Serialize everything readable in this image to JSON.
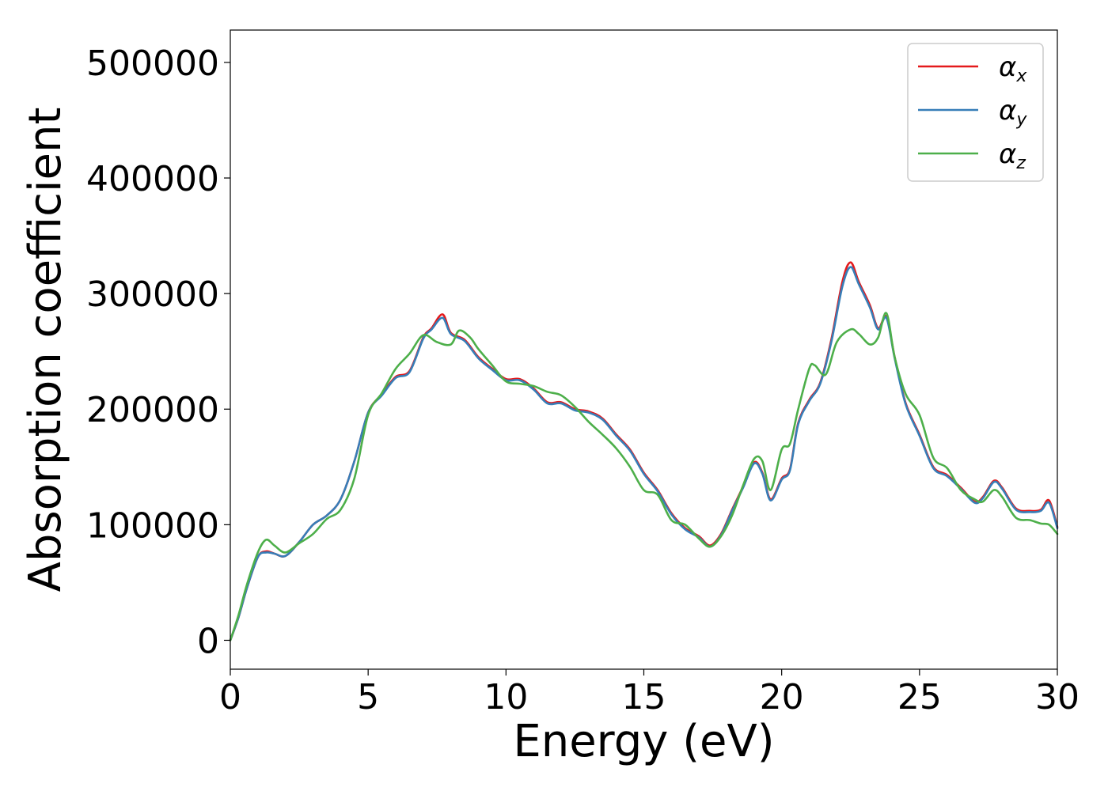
{
  "chart_data": {
    "type": "line",
    "title": "",
    "xlabel": "Energy (eV)",
    "ylabel": "Absorption coefficient",
    "xlim": [
      0,
      30
    ],
    "ylim": [
      -25000,
      528000
    ],
    "xticks": [
      0,
      5,
      10,
      15,
      20,
      25,
      30
    ],
    "yticks": [
      0,
      100000,
      200000,
      300000,
      400000,
      500000
    ],
    "grid": false,
    "legend_position": "upper right",
    "series": [
      {
        "name": "αx",
        "base": "α",
        "sub": "x",
        "color": "#e41a1c",
        "x": [
          0,
          0.3,
          0.6,
          1.0,
          1.3,
          1.6,
          2.0,
          2.5,
          3.0,
          3.5,
          4.0,
          4.5,
          5.0,
          5.5,
          6.0,
          6.5,
          7.0,
          7.3,
          7.7,
          8.0,
          8.5,
          9.0,
          9.5,
          10.0,
          10.5,
          11.0,
          11.5,
          12.0,
          12.5,
          13.0,
          13.5,
          14.0,
          14.5,
          15.0,
          15.5,
          16.0,
          16.5,
          17.0,
          17.4,
          17.8,
          18.2,
          18.6,
          19.0,
          19.3,
          19.6,
          20.0,
          20.3,
          20.6,
          21.0,
          21.4,
          21.8,
          22.2,
          22.5,
          22.8,
          23.2,
          23.5,
          23.8,
          24.1,
          24.5,
          25.0,
          25.5,
          26.0,
          26.5,
          27.0,
          27.3,
          27.7,
          28.0,
          28.5,
          29.0,
          29.4,
          29.7,
          30.0
        ],
        "values": [
          0,
          20000,
          45000,
          72000,
          77000,
          75000,
          73000,
          85000,
          100000,
          108000,
          122000,
          155000,
          197000,
          213000,
          228000,
          233000,
          262000,
          270000,
          282000,
          266000,
          260000,
          245000,
          235000,
          226000,
          226000,
          218000,
          206000,
          206000,
          200000,
          198000,
          192000,
          178000,
          165000,
          145000,
          130000,
          110000,
          97000,
          90000,
          82000,
          92000,
          113000,
          133000,
          154000,
          145000,
          122000,
          140000,
          148000,
          188000,
          208000,
          223000,
          260000,
          310000,
          327000,
          310000,
          290000,
          270000,
          280000,
          245000,
          205000,
          178000,
          150000,
          143000,
          132000,
          120000,
          124000,
          138000,
          132000,
          114000,
          112000,
          113000,
          121000,
          98000
        ]
      },
      {
        "name": "αy",
        "base": "α",
        "sub": "y",
        "color": "#377eb8",
        "x": [
          0,
          0.3,
          0.6,
          1.0,
          1.3,
          1.6,
          2.0,
          2.5,
          3.0,
          3.5,
          4.0,
          4.5,
          5.0,
          5.5,
          6.0,
          6.5,
          7.0,
          7.3,
          7.7,
          8.0,
          8.5,
          9.0,
          9.5,
          10.0,
          10.5,
          11.0,
          11.5,
          12.0,
          12.5,
          13.0,
          13.5,
          14.0,
          14.5,
          15.0,
          15.5,
          16.0,
          16.5,
          17.0,
          17.4,
          17.8,
          18.2,
          18.6,
          19.0,
          19.3,
          19.6,
          20.0,
          20.3,
          20.6,
          21.0,
          21.4,
          21.8,
          22.2,
          22.5,
          22.8,
          23.2,
          23.5,
          23.8,
          24.1,
          24.5,
          25.0,
          25.5,
          26.0,
          26.5,
          27.0,
          27.3,
          27.7,
          28.0,
          28.5,
          29.0,
          29.4,
          29.7,
          30.0
        ],
        "values": [
          0,
          20000,
          45000,
          72000,
          76000,
          75000,
          73000,
          85000,
          100000,
          108000,
          122000,
          155000,
          197000,
          212000,
          227000,
          232000,
          261000,
          269000,
          279000,
          265000,
          259000,
          244000,
          234000,
          225000,
          225000,
          217000,
          205000,
          205000,
          199000,
          197000,
          191000,
          177000,
          164000,
          144000,
          129000,
          109000,
          96000,
          89000,
          81000,
          91000,
          112000,
          132000,
          153000,
          144000,
          121000,
          139000,
          147000,
          187000,
          207000,
          222000,
          258000,
          306000,
          323000,
          308000,
          288000,
          269000,
          279000,
          244000,
          204000,
          177000,
          149000,
          142000,
          131000,
          119000,
          123000,
          137000,
          131000,
          113000,
          111000,
          112000,
          119000,
          97000
        ]
      },
      {
        "name": "αz",
        "base": "α",
        "sub": "z",
        "color": "#4daf4a",
        "x": [
          0,
          0.3,
          0.6,
          1.0,
          1.3,
          1.6,
          2.0,
          2.5,
          3.0,
          3.5,
          4.0,
          4.5,
          5.0,
          5.5,
          6.0,
          6.5,
          7.0,
          7.5,
          8.0,
          8.3,
          8.7,
          9.0,
          9.5,
          10.0,
          10.5,
          11.0,
          11.5,
          12.0,
          12.5,
          13.0,
          13.5,
          14.0,
          14.5,
          15.0,
          15.5,
          16.0,
          16.5,
          17.0,
          17.4,
          17.8,
          18.2,
          18.6,
          19.0,
          19.3,
          19.6,
          20.0,
          20.3,
          20.6,
          21.0,
          21.2,
          21.6,
          22.0,
          22.5,
          22.8,
          23.2,
          23.5,
          23.8,
          24.1,
          24.5,
          25.0,
          25.5,
          26.0,
          26.5,
          27.0,
          27.3,
          27.7,
          28.0,
          28.5,
          29.0,
          29.4,
          29.7,
          30.0
        ],
        "values": [
          0,
          22000,
          48000,
          76000,
          87000,
          82000,
          76000,
          84000,
          92000,
          105000,
          113000,
          140000,
          195000,
          214000,
          235000,
          248000,
          264000,
          258000,
          256000,
          268000,
          262000,
          252000,
          238000,
          224000,
          222000,
          220000,
          215000,
          212000,
          202000,
          189000,
          178000,
          166000,
          150000,
          130000,
          126000,
          104000,
          100000,
          88000,
          81000,
          90000,
          108000,
          134000,
          157000,
          155000,
          130000,
          165000,
          170000,
          200000,
          235000,
          238000,
          230000,
          258000,
          269000,
          265000,
          256000,
          262000,
          283000,
          245000,
          213000,
          195000,
          158000,
          149000,
          130000,
          122000,
          120000,
          130000,
          124000,
          106000,
          104000,
          101000,
          100000,
          92000
        ]
      }
    ]
  }
}
